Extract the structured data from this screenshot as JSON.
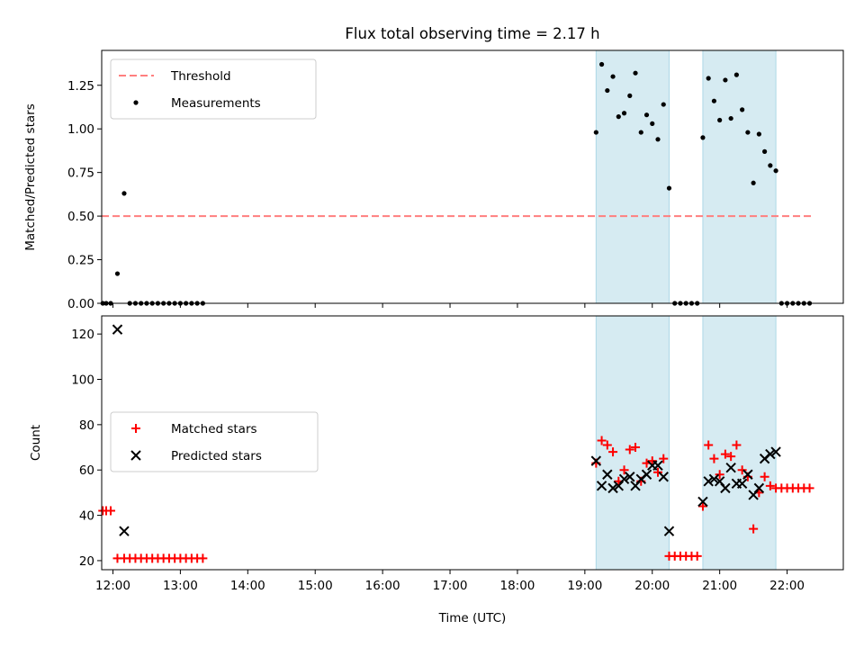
{
  "figure": {
    "title": "Flux total observing time = 2.17 h"
  },
  "chart_data": [
    {
      "type": "scatter",
      "panel": "top",
      "ylabel": "Matched/Predicted stars",
      "xlabel": "",
      "xlim": [
        "11:50",
        "22:50"
      ],
      "ylim": [
        0,
        1.45
      ],
      "yticks": [
        "0.00",
        "0.25",
        "0.50",
        "0.75",
        "1.00",
        "1.25"
      ],
      "grid": false,
      "legend_position": "upper-left",
      "threshold": {
        "name": "Threshold",
        "value": 0.5,
        "x_range": [
          "11:50",
          "22:23"
        ],
        "color": "#ff7f7f",
        "style": "dashed"
      },
      "shaded_intervals": [
        [
          "19:10",
          "20:15"
        ],
        [
          "20:45",
          "21:50"
        ]
      ],
      "series": [
        {
          "name": "Measurements",
          "marker": "dot",
          "color": "#000000",
          "points": [
            [
              "11:51",
              0
            ],
            [
              "11:54",
              0
            ],
            [
              "11:58",
              0
            ],
            [
              "12:04",
              0.17
            ],
            [
              "12:10",
              0.63
            ],
            [
              "12:15",
              0
            ],
            [
              "12:20",
              0
            ],
            [
              "12:25",
              0
            ],
            [
              "12:30",
              0
            ],
            [
              "12:35",
              0
            ],
            [
              "12:40",
              0
            ],
            [
              "12:45",
              0
            ],
            [
              "12:50",
              0
            ],
            [
              "12:55",
              0
            ],
            [
              "13:00",
              0
            ],
            [
              "13:05",
              0
            ],
            [
              "13:10",
              0
            ],
            [
              "13:15",
              0
            ],
            [
              "13:20",
              0
            ],
            [
              "19:10",
              0.98
            ],
            [
              "19:15",
              1.37
            ],
            [
              "19:20",
              1.22
            ],
            [
              "19:25",
              1.3
            ],
            [
              "19:30",
              1.07
            ],
            [
              "19:35",
              1.09
            ],
            [
              "19:40",
              1.19
            ],
            [
              "19:45",
              1.32
            ],
            [
              "19:50",
              0.98
            ],
            [
              "19:55",
              1.08
            ],
            [
              "20:00",
              1.03
            ],
            [
              "20:05",
              0.94
            ],
            [
              "20:10",
              1.14
            ],
            [
              "20:15",
              0.66
            ],
            [
              "20:20",
              0
            ],
            [
              "20:25",
              0
            ],
            [
              "20:30",
              0
            ],
            [
              "20:35",
              0
            ],
            [
              "20:40",
              0
            ],
            [
              "20:45",
              0.95
            ],
            [
              "20:50",
              1.29
            ],
            [
              "20:55",
              1.16
            ],
            [
              "21:00",
              1.05
            ],
            [
              "21:05",
              1.28
            ],
            [
              "21:10",
              1.06
            ],
            [
              "21:15",
              1.31
            ],
            [
              "21:20",
              1.11
            ],
            [
              "21:25",
              0.98
            ],
            [
              "21:30",
              0.69
            ],
            [
              "21:35",
              0.97
            ],
            [
              "21:40",
              0.87
            ],
            [
              "21:45",
              0.79
            ],
            [
              "21:50",
              0.76
            ],
            [
              "21:55",
              0
            ],
            [
              "22:00",
              0
            ],
            [
              "22:05",
              0
            ],
            [
              "22:10",
              0
            ],
            [
              "22:15",
              0
            ],
            [
              "22:20",
              0
            ]
          ]
        }
      ]
    },
    {
      "type": "scatter",
      "panel": "bottom",
      "ylabel": "Count",
      "xlabel": "Time (UTC)",
      "xlim": [
        "11:50",
        "22:50"
      ],
      "ylim": [
        16,
        128
      ],
      "yticks": [
        "20",
        "40",
        "60",
        "80",
        "100",
        "120"
      ],
      "xticks": [
        "12:00",
        "13:00",
        "14:00",
        "15:00",
        "16:00",
        "17:00",
        "18:00",
        "19:00",
        "20:00",
        "21:00",
        "22:00"
      ],
      "grid": false,
      "legend_position": "center-left",
      "shaded_intervals": [
        [
          "19:10",
          "20:15"
        ],
        [
          "20:45",
          "21:50"
        ]
      ],
      "series": [
        {
          "name": "Matched stars",
          "marker": "plus",
          "color": "#ff0000",
          "points": [
            [
              "11:51",
              42
            ],
            [
              "11:54",
              42
            ],
            [
              "11:58",
              42
            ],
            [
              "12:04",
              21
            ],
            [
              "12:10",
              21
            ],
            [
              "12:15",
              21
            ],
            [
              "12:20",
              21
            ],
            [
              "12:25",
              21
            ],
            [
              "12:30",
              21
            ],
            [
              "12:35",
              21
            ],
            [
              "12:40",
              21
            ],
            [
              "12:45",
              21
            ],
            [
              "12:50",
              21
            ],
            [
              "12:55",
              21
            ],
            [
              "13:00",
              21
            ],
            [
              "13:05",
              21
            ],
            [
              "13:10",
              21
            ],
            [
              "13:15",
              21
            ],
            [
              "13:20",
              21
            ],
            [
              "19:10",
              63
            ],
            [
              "19:15",
              73
            ],
            [
              "19:20",
              71
            ],
            [
              "19:25",
              68
            ],
            [
              "19:30",
              55
            ],
            [
              "19:35",
              60
            ],
            [
              "19:40",
              69
            ],
            [
              "19:45",
              70
            ],
            [
              "19:50",
              55
            ],
            [
              "19:55",
              63
            ],
            [
              "20:00",
              64
            ],
            [
              "20:05",
              59
            ],
            [
              "20:10",
              65
            ],
            [
              "20:15",
              22
            ],
            [
              "20:20",
              22
            ],
            [
              "20:25",
              22
            ],
            [
              "20:30",
              22
            ],
            [
              "20:35",
              22
            ],
            [
              "20:40",
              22
            ],
            [
              "20:45",
              44
            ],
            [
              "20:50",
              71
            ],
            [
              "20:55",
              65
            ],
            [
              "21:00",
              58
            ],
            [
              "21:05",
              67
            ],
            [
              "21:10",
              66
            ],
            [
              "21:15",
              71
            ],
            [
              "21:20",
              60
            ],
            [
              "21:25",
              57
            ],
            [
              "21:30",
              34
            ],
            [
              "21:35",
              50
            ],
            [
              "21:40",
              57
            ],
            [
              "21:45",
              53
            ],
            [
              "21:50",
              52
            ],
            [
              "21:55",
              52
            ],
            [
              "22:00",
              52
            ],
            [
              "22:05",
              52
            ],
            [
              "22:10",
              52
            ],
            [
              "22:15",
              52
            ],
            [
              "22:20",
              52
            ]
          ]
        },
        {
          "name": "Predicted stars",
          "marker": "x",
          "color": "#000000",
          "points": [
            [
              "12:04",
              122
            ],
            [
              "12:10",
              33
            ],
            [
              "19:10",
              64
            ],
            [
              "19:15",
              53
            ],
            [
              "19:20",
              58
            ],
            [
              "19:25",
              52
            ],
            [
              "19:30",
              53
            ],
            [
              "19:35",
              56
            ],
            [
              "19:40",
              57
            ],
            [
              "19:45",
              53
            ],
            [
              "19:50",
              56
            ],
            [
              "19:55",
              58
            ],
            [
              "20:00",
              62
            ],
            [
              "20:05",
              62
            ],
            [
              "20:10",
              57
            ],
            [
              "20:15",
              33
            ],
            [
              "20:45",
              46
            ],
            [
              "20:50",
              55
            ],
            [
              "20:55",
              56
            ],
            [
              "21:00",
              55
            ],
            [
              "21:05",
              52
            ],
            [
              "21:10",
              61
            ],
            [
              "21:15",
              54
            ],
            [
              "21:20",
              54
            ],
            [
              "21:25",
              58
            ],
            [
              "21:30",
              49
            ],
            [
              "21:35",
              52
            ],
            [
              "21:40",
              65
            ],
            [
              "21:45",
              67
            ],
            [
              "21:50",
              68
            ]
          ]
        }
      ]
    }
  ]
}
